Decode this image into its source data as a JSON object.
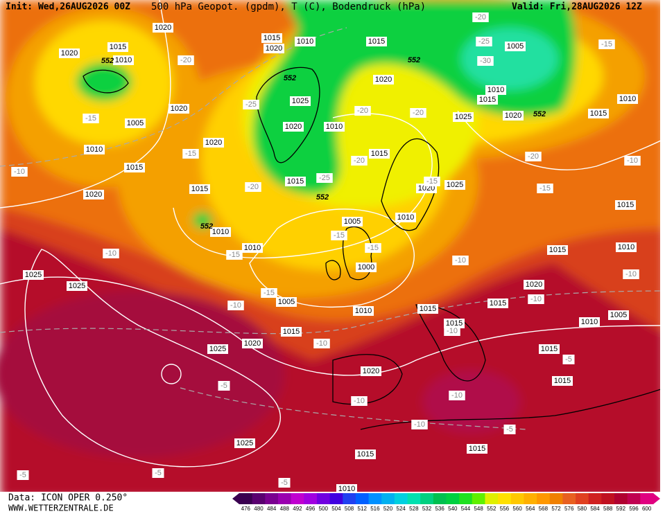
{
  "header": {
    "init": "Init: Wed,26AUG2026 00Z",
    "title": "500 hPa Geopot. (gpdm), T (C), Bodendruck (hPa)",
    "valid": "Valid: Fri,28AUG2026 12Z"
  },
  "map": {
    "labels": [
      "1020",
      "1020",
      "1015",
      "1010",
      "552",
      "1015",
      "1020",
      "1010",
      "1015",
      "552",
      "1005",
      "-25",
      "-30",
      "-20",
      "-15",
      "1010",
      "1015",
      "1020",
      "552",
      "1015",
      "1010",
      "1020",
      "552",
      "-20",
      "1020",
      "-15",
      "1005",
      "1010",
      "1015",
      "1020",
      "-10",
      "1025",
      "-25",
      "1020",
      "1010",
      "1020",
      "-15",
      "-20",
      "-20",
      "1025",
      "1015",
      "-20",
      "1015",
      "-25",
      "552",
      "-20",
      "1015",
      "1020",
      "1025",
      "-15",
      "-20",
      "-15",
      "-10",
      "1015",
      "1010",
      "552",
      "1010",
      "-15",
      "1005",
      "1010",
      "-15",
      "-15",
      "1000",
      "-10",
      "1015",
      "1010",
      "-10",
      "1025",
      "1025",
      "-15",
      "1005",
      "-10",
      "1010",
      "1015",
      "1015",
      "1020",
      "-10",
      "-10",
      "1005",
      "1010",
      "1015",
      "-10",
      "1015",
      "1020",
      "-10",
      "1025",
      "1015",
      "-5",
      "1020",
      "-5",
      "1015",
      "-10",
      "-10",
      "-10",
      "-5",
      "1025",
      "1015",
      "1015",
      "-5",
      "-5",
      "1010",
      "-5"
    ]
  },
  "footer": {
    "source": "Data: ICON OPER 0.250°",
    "website": "WWW.WETTERZENTRALE.DE"
  },
  "colorbar": {
    "labels": [
      476,
      480,
      484,
      488,
      492,
      496,
      500,
      504,
      508,
      512,
      516,
      520,
      524,
      528,
      532,
      536,
      540,
      544,
      548,
      552,
      556,
      560,
      564,
      568,
      572,
      576,
      580,
      584,
      588,
      592,
      596,
      600
    ],
    "colors": [
      "#3a0050",
      "#5a0070",
      "#7a0090",
      "#9a00b0",
      "#c000d0",
      "#a000e0",
      "#7000e0",
      "#4000e0",
      "#2040f0",
      "#0060ff",
      "#0090ff",
      "#00b0f0",
      "#00d0e0",
      "#00e0b0",
      "#00d080",
      "#00c050",
      "#00d040",
      "#20e020",
      "#60f000",
      "#e0f000",
      "#ffe000",
      "#ffc800",
      "#ffb000",
      "#ff9800",
      "#f08000",
      "#e86020",
      "#e04020",
      "#d02020",
      "#c01020",
      "#b00030",
      "#c00050",
      "#e00080"
    ]
  }
}
